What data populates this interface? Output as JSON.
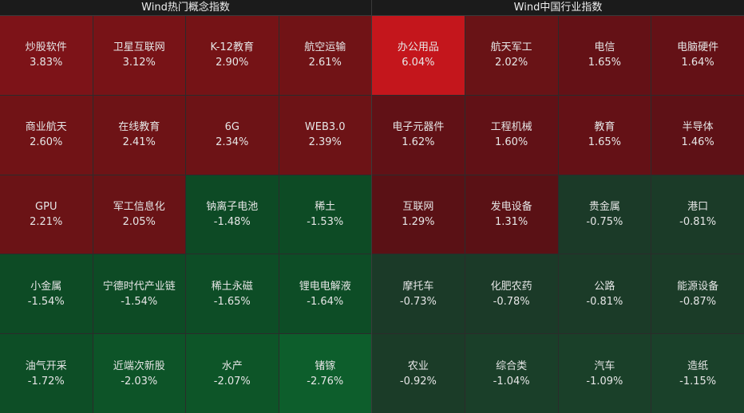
{
  "panels": [
    {
      "title": "Wind热门概念指数",
      "cells": [
        {
          "name": "炒股软件",
          "change": "3.83%",
          "color": "#7d1318"
        },
        {
          "name": "卫星互联网",
          "change": "3.12%",
          "color": "#781317"
        },
        {
          "name": "K-12教育",
          "change": "2.90%",
          "color": "#751316"
        },
        {
          "name": "航空运输",
          "change": "2.61%",
          "color": "#711316"
        },
        {
          "name": "商业航天",
          "change": "2.60%",
          "color": "#711316"
        },
        {
          "name": "在线教育",
          "change": "2.41%",
          "color": "#6e1316"
        },
        {
          "name": "6G",
          "change": "2.34%",
          "color": "#6d1316"
        },
        {
          "name": "WEB3.0",
          "change": "2.39%",
          "color": "#6d1316"
        },
        {
          "name": "GPU",
          "change": "2.21%",
          "color": "#6b1316"
        },
        {
          "name": "军工信息化",
          "change": "2.05%",
          "color": "#691316"
        },
        {
          "name": "钠离子电池",
          "change": "-1.48%",
          "color": "#0d4a25"
        },
        {
          "name": "稀土",
          "change": "-1.53%",
          "color": "#0d4b25"
        },
        {
          "name": "小金属",
          "change": "-1.54%",
          "color": "#0d4b25"
        },
        {
          "name": "宁德时代产业链",
          "change": "-1.54%",
          "color": "#0d4b25"
        },
        {
          "name": "稀土永磁",
          "change": "-1.65%",
          "color": "#0d4d26"
        },
        {
          "name": "锂电电解液",
          "change": "-1.64%",
          "color": "#0d4d26"
        },
        {
          "name": "油气开采",
          "change": "-1.72%",
          "color": "#0d4e26"
        },
        {
          "name": "近端次新股",
          "change": "-2.03%",
          "color": "#0d5428"
        },
        {
          "name": "水产",
          "change": "-2.07%",
          "color": "#0d5528"
        },
        {
          "name": "锗镓",
          "change": "-2.76%",
          "color": "#0d5e2c"
        }
      ]
    },
    {
      "title": "Wind中国行业指数",
      "cells": [
        {
          "name": "办公用品",
          "change": "6.04%",
          "color": "#c4161c"
        },
        {
          "name": "航天军工",
          "change": "2.02%",
          "color": "#691316"
        },
        {
          "name": "电信",
          "change": "1.65%",
          "color": "#641116"
        },
        {
          "name": "电脑硬件",
          "change": "1.64%",
          "color": "#641116"
        },
        {
          "name": "电子元器件",
          "change": "1.62%",
          "color": "#611116"
        },
        {
          "name": "工程机械",
          "change": "1.60%",
          "color": "#611116"
        },
        {
          "name": "教育",
          "change": "1.65%",
          "color": "#641116"
        },
        {
          "name": "半导体",
          "change": "1.46%",
          "color": "#5e1116"
        },
        {
          "name": "互联网",
          "change": "1.29%",
          "color": "#5a1115"
        },
        {
          "name": "发电设备",
          "change": "1.31%",
          "color": "#5a1115"
        },
        {
          "name": "贵金属",
          "change": "-0.75%",
          "color": "#1b3a28"
        },
        {
          "name": "港口",
          "change": "-0.81%",
          "color": "#1b3b28"
        },
        {
          "name": "摩托车",
          "change": "-0.73%",
          "color": "#1b3a28"
        },
        {
          "name": "化肥农药",
          "change": "-0.78%",
          "color": "#1b3a28"
        },
        {
          "name": "公路",
          "change": "-0.81%",
          "color": "#1b3b28"
        },
        {
          "name": "能源设备",
          "change": "-0.87%",
          "color": "#1b3c28"
        },
        {
          "name": "农业",
          "change": "-0.92%",
          "color": "#1b3c28"
        },
        {
          "name": "综合类",
          "change": "-1.04%",
          "color": "#1a3f29"
        },
        {
          "name": "汽车",
          "change": "-1.09%",
          "color": "#1a4029"
        },
        {
          "name": "造纸",
          "change": "-1.15%",
          "color": "#1a412a"
        }
      ]
    }
  ]
}
